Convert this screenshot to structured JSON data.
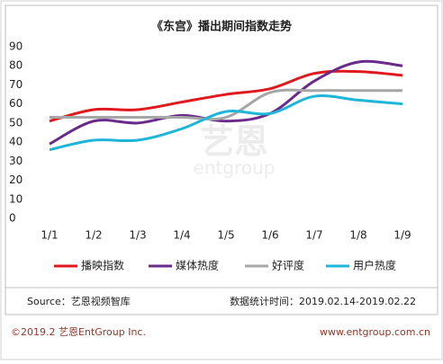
{
  "chart_data": {
    "type": "line",
    "title": "《东宫》播出期间指数走势",
    "categories": [
      "1/1",
      "1/2",
      "1/3",
      "1/4",
      "1/5",
      "1/6",
      "1/7",
      "1/8",
      "1/9"
    ],
    "series": [
      {
        "name": "播映指数",
        "color": "#e0191f",
        "values": [
          51,
          57,
          57,
          61,
          65,
          68,
          76,
          77,
          75
        ]
      },
      {
        "name": "媒体热度",
        "color": "#6a2a8a",
        "values": [
          39,
          51,
          50,
          54,
          51,
          55,
          72,
          82,
          80
        ]
      },
      {
        "name": "好评度",
        "color": "#a6a6a6",
        "values": [
          53,
          53,
          53,
          53,
          53,
          66,
          67,
          67,
          67
        ]
      },
      {
        "name": "用户热度",
        "color": "#1fb5d8",
        "values": [
          36,
          41,
          41,
          47,
          56,
          55,
          64,
          62,
          60
        ]
      }
    ],
    "ylim": [
      0,
      90
    ],
    "yticks": [
      0,
      10,
      20,
      30,
      40,
      50,
      60,
      70,
      80,
      90
    ],
    "watermark": [
      "艺恩",
      "entgroup"
    ],
    "source": "Source：艺恩视频智库",
    "period": "数据统计时间：2019.02.14-2019.02.22",
    "copyright": "©2019.2 艺恩EntGroup Inc.",
    "website": "www.entgroup.com.cn"
  }
}
